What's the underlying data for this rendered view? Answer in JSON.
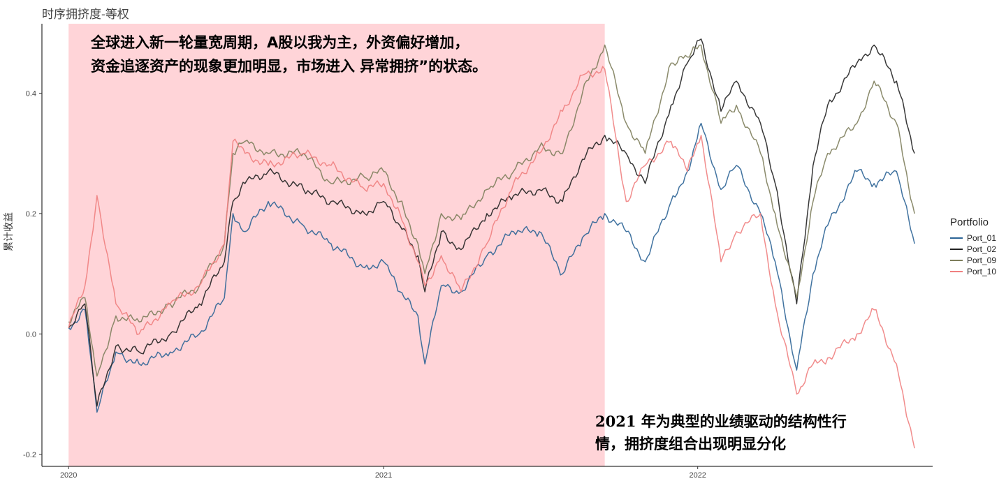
{
  "chart_data": {
    "type": "line",
    "title": "时序拥挤度-等权",
    "ylabel": "累计收益",
    "xlabel": "",
    "ylim": [
      -0.22,
      0.52
    ],
    "yticks": [
      -0.2,
      0.0,
      0.2,
      0.4
    ],
    "ytick_labels": [
      "-0.2",
      "0.0",
      "0.2",
      "0.4"
    ],
    "xticks": [
      "2020-01-01",
      "2021-01-01",
      "2022-01-01"
    ],
    "xtick_labels": [
      "2020",
      "2021",
      "2022"
    ],
    "xlim": [
      "2019-12-01",
      "2022-10-01"
    ],
    "grid": false,
    "legend": {
      "title": "Portfolio",
      "placement": "right"
    },
    "highlight": {
      "from": "2020-01-01",
      "to": "2021-09-15",
      "color": "#ffd4d8"
    },
    "annotations": [
      {
        "line1": "全球进入新一轮量宽周期，A股以我为主，外资偏好增加，",
        "line2": "资金追逐资产的现象更加明显，市场进入 异常拥挤”的状态。"
      },
      {
        "line1": "2021 年为典型的业绩驱动的结构性行",
        "line2": "情，拥挤度组合出现明显分化"
      }
    ],
    "series": [
      {
        "name": "Port_01",
        "color": "#2c6496",
        "x": [
          "2020-01-01",
          "2020-01-20",
          "2020-02-03",
          "2020-02-25",
          "2020-03-23",
          "2020-04-28",
          "2020-06-01",
          "2020-06-30",
          "2020-07-10",
          "2020-07-24",
          "2020-08-20",
          "2020-09-30",
          "2020-11-01",
          "2020-12-10",
          "2021-01-01",
          "2021-01-20",
          "2021-02-10",
          "2021-02-18",
          "2021-03-09",
          "2021-04-01",
          "2021-05-01",
          "2021-06-01",
          "2021-07-01",
          "2021-07-28",
          "2021-08-20",
          "2021-09-15",
          "2021-10-10",
          "2021-11-01",
          "2021-12-01",
          "2021-12-20",
          "2022-01-05",
          "2022-01-28",
          "2022-02-15",
          "2022-03-15",
          "2022-04-01",
          "2022-04-26",
          "2022-05-15",
          "2022-06-01",
          "2022-07-05",
          "2022-07-25",
          "2022-08-20",
          "2022-09-10"
        ],
        "values": [
          0.01,
          0.04,
          -0.13,
          -0.03,
          -0.05,
          -0.03,
          0.0,
          0.06,
          0.2,
          0.17,
          0.22,
          0.18,
          0.15,
          0.11,
          0.12,
          0.07,
          0.03,
          -0.05,
          0.08,
          0.07,
          0.13,
          0.17,
          0.17,
          0.1,
          0.16,
          0.2,
          0.17,
          0.12,
          0.22,
          0.27,
          0.35,
          0.24,
          0.28,
          0.2,
          0.12,
          -0.06,
          0.1,
          0.18,
          0.27,
          0.25,
          0.27,
          0.15
        ]
      },
      {
        "name": "Port_02",
        "color": "#222222",
        "x": [
          "2020-01-01",
          "2020-01-20",
          "2020-02-03",
          "2020-02-25",
          "2020-03-23",
          "2020-04-28",
          "2020-06-01",
          "2020-06-30",
          "2020-07-10",
          "2020-07-24",
          "2020-08-20",
          "2020-09-30",
          "2020-11-01",
          "2020-12-10",
          "2021-01-01",
          "2021-01-20",
          "2021-02-10",
          "2021-02-18",
          "2021-03-09",
          "2021-04-01",
          "2021-05-01",
          "2021-06-01",
          "2021-07-01",
          "2021-07-28",
          "2021-08-20",
          "2021-09-15",
          "2021-10-10",
          "2021-11-01",
          "2021-12-01",
          "2021-12-20",
          "2022-01-05",
          "2022-01-28",
          "2022-02-15",
          "2022-03-15",
          "2022-04-01",
          "2022-04-26",
          "2022-05-15",
          "2022-06-01",
          "2022-07-05",
          "2022-07-25",
          "2022-08-20",
          "2022-09-10"
        ],
        "values": [
          0.01,
          0.05,
          -0.12,
          -0.02,
          -0.03,
          0.0,
          0.05,
          0.12,
          0.22,
          0.25,
          0.27,
          0.24,
          0.22,
          0.2,
          0.22,
          0.18,
          0.13,
          0.07,
          0.17,
          0.14,
          0.2,
          0.23,
          0.24,
          0.22,
          0.29,
          0.33,
          0.3,
          0.25,
          0.38,
          0.45,
          0.49,
          0.37,
          0.42,
          0.35,
          0.25,
          0.05,
          0.28,
          0.38,
          0.45,
          0.48,
          0.42,
          0.3
        ]
      },
      {
        "name": "Port_09",
        "color": "#7e7e5c",
        "x": [
          "2020-01-01",
          "2020-01-20",
          "2020-02-03",
          "2020-02-25",
          "2020-03-23",
          "2020-04-28",
          "2020-06-01",
          "2020-06-30",
          "2020-07-10",
          "2020-07-24",
          "2020-08-20",
          "2020-09-30",
          "2020-11-01",
          "2020-12-10",
          "2021-01-01",
          "2021-01-20",
          "2021-02-10",
          "2021-02-18",
          "2021-03-09",
          "2021-04-01",
          "2021-05-01",
          "2021-06-01",
          "2021-07-01",
          "2021-07-28",
          "2021-08-20",
          "2021-09-15",
          "2021-10-10",
          "2021-11-01",
          "2021-12-01",
          "2021-12-20",
          "2022-01-05",
          "2022-01-28",
          "2022-02-15",
          "2022-03-15",
          "2022-04-01",
          "2022-04-26",
          "2022-05-15",
          "2022-06-01",
          "2022-07-05",
          "2022-07-25",
          "2022-08-20",
          "2022-09-10"
        ],
        "values": [
          0.02,
          0.06,
          -0.07,
          0.03,
          0.02,
          0.05,
          0.08,
          0.15,
          0.3,
          0.32,
          0.3,
          0.3,
          0.25,
          0.26,
          0.27,
          0.22,
          0.15,
          0.1,
          0.2,
          0.19,
          0.24,
          0.27,
          0.31,
          0.3,
          0.4,
          0.48,
          0.35,
          0.3,
          0.45,
          0.46,
          0.48,
          0.35,
          0.38,
          0.3,
          0.2,
          0.06,
          0.22,
          0.3,
          0.35,
          0.42,
          0.35,
          0.2
        ]
      },
      {
        "name": "Port_10",
        "color": "#f08080",
        "x": [
          "2020-01-01",
          "2020-01-20",
          "2020-02-03",
          "2020-02-25",
          "2020-03-23",
          "2020-04-28",
          "2020-06-01",
          "2020-06-30",
          "2020-07-10",
          "2020-07-24",
          "2020-08-20",
          "2020-09-30",
          "2020-11-01",
          "2020-12-10",
          "2021-01-01",
          "2021-01-20",
          "2021-02-10",
          "2021-02-18",
          "2021-03-09",
          "2021-04-01",
          "2021-05-01",
          "2021-06-01",
          "2021-07-01",
          "2021-07-28",
          "2021-08-20",
          "2021-09-15",
          "2021-10-10",
          "2021-11-01",
          "2021-12-01",
          "2021-12-20",
          "2022-01-05",
          "2022-01-28",
          "2022-02-15",
          "2022-03-15",
          "2022-04-01",
          "2022-04-26",
          "2022-05-15",
          "2022-06-01",
          "2022-07-05",
          "2022-07-25",
          "2022-08-20",
          "2022-09-10"
        ],
        "values": [
          0.01,
          0.08,
          0.23,
          0.05,
          0.0,
          0.05,
          0.08,
          0.15,
          0.32,
          0.3,
          0.28,
          0.3,
          0.28,
          0.24,
          0.25,
          0.2,
          0.12,
          0.08,
          0.13,
          0.07,
          0.15,
          0.25,
          0.3,
          0.37,
          0.43,
          0.44,
          0.22,
          0.28,
          0.32,
          0.27,
          0.33,
          0.12,
          0.17,
          0.2,
          0.05,
          -0.1,
          -0.05,
          -0.04,
          0.0,
          0.04,
          -0.05,
          -0.19
        ]
      }
    ]
  }
}
